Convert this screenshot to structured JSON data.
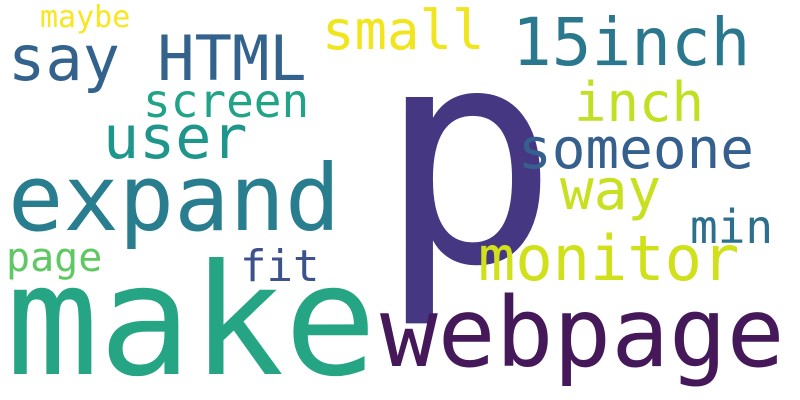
{
  "words": [
    {
      "text": "p",
      "color": "#453781"
    },
    {
      "text": "make",
      "color": "#25a584"
    },
    {
      "text": "webpage",
      "color": "#45185a"
    },
    {
      "text": "expand",
      "color": "#287e8e"
    },
    {
      "text": "15inch",
      "color": "#2a788e"
    },
    {
      "text": "monitor",
      "color": "#d0e11c"
    },
    {
      "text": "say HTML",
      "color": "#33638d"
    },
    {
      "text": "user",
      "color": "#1f968b"
    },
    {
      "text": "someone",
      "color": "#355f8d"
    },
    {
      "text": "way",
      "color": "#c8e020"
    },
    {
      "text": "small",
      "color": "#f1e51d"
    },
    {
      "text": "inch",
      "color": "#c2df23"
    },
    {
      "text": "screen",
      "color": "#20a386"
    },
    {
      "text": "min",
      "color": "#2d708e"
    },
    {
      "text": "fit",
      "color": "#3b528b"
    },
    {
      "text": "page",
      "color": "#5ec962"
    },
    {
      "text": "maybe",
      "color": "#f8e621"
    }
  ]
}
